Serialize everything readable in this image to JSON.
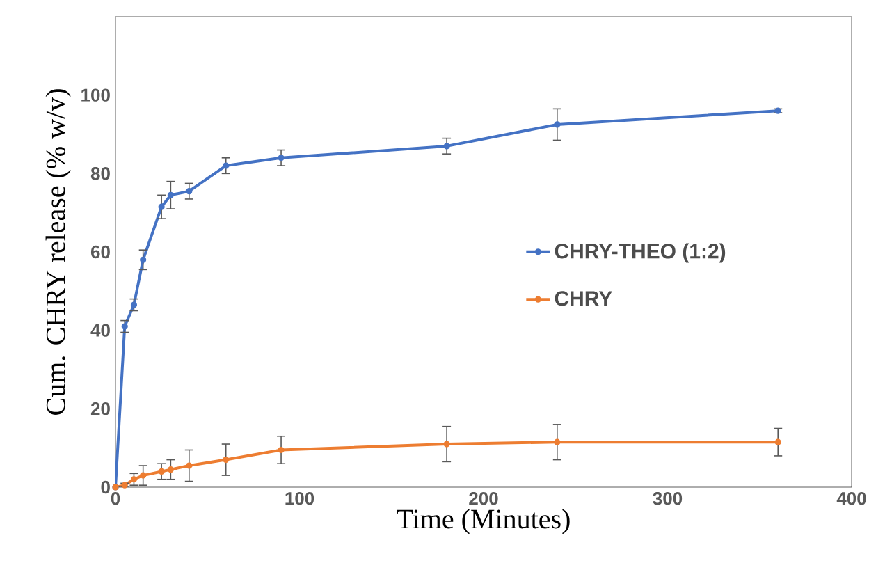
{
  "chart_data": {
    "type": "line",
    "xlabel": "Time (Minutes)",
    "ylabel": "Cum. CHRY release (% w/v)",
    "x": [
      0,
      5,
      10,
      15,
      25,
      30,
      40,
      60,
      90,
      180,
      240,
      360
    ],
    "series": [
      {
        "name": "CHRY-THEO (1:2)",
        "color": "#4472c4",
        "values": [
          0,
          41,
          46.5,
          58,
          71.5,
          74.5,
          75.5,
          82,
          84,
          87,
          92.5,
          96
        ],
        "errors": [
          0,
          1.5,
          1.5,
          2.5,
          3,
          3.5,
          2,
          2,
          2,
          2,
          4,
          0.5
        ]
      },
      {
        "name": "CHRY",
        "color": "#ed7d31",
        "values": [
          0,
          0.5,
          2,
          3,
          4,
          4.5,
          5.5,
          7,
          9.5,
          11,
          11.5,
          11.5
        ],
        "errors": [
          0,
          0.5,
          1.5,
          2.5,
          2,
          2.5,
          4,
          4,
          3.5,
          4.5,
          4.5,
          3.5
        ]
      }
    ],
    "xlim": [
      0,
      400
    ],
    "ylim": [
      0,
      120
    ],
    "xticks": [
      0,
      100,
      200,
      300,
      400
    ],
    "yticks": [
      0,
      20,
      40,
      60,
      80,
      100
    ],
    "legend": "right",
    "marker": "circle",
    "line_style": "solid",
    "grid": false
  }
}
